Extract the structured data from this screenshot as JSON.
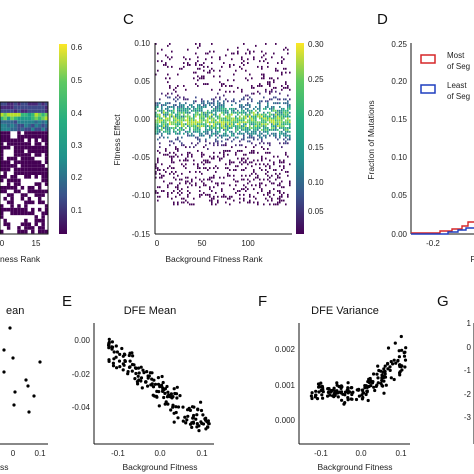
{
  "panels": {
    "C": "C",
    "D": "D",
    "E": "E",
    "F": "F",
    "G": "G"
  },
  "colors": {
    "viridis": [
      "#440154",
      "#482878",
      "#3e4989",
      "#31688e",
      "#26828e",
      "#1f9e89",
      "#35b779",
      "#6ece58",
      "#b5de2b",
      "#fde725"
    ],
    "mostFit": "#d62728",
    "leastFit": "#1f3fbf",
    "points": "#000000"
  },
  "chart_data": [
    {
      "id": "left-heatmap",
      "type": "heatmap",
      "xticks": [
        "0",
        "15"
      ],
      "xlabel": "ness Rank",
      "colorbar": {
        "ticks": [
          "0.1",
          "0.2",
          "0.3",
          "0.4",
          "0.5",
          "0.6"
        ],
        "range": [
          0.05,
          0.62
        ]
      }
    },
    {
      "id": "C",
      "type": "heatmap",
      "xlabel": "Background Fitness Rank",
      "ylabel": "Fitness Effect",
      "xlim": [
        0,
        145
      ],
      "ylim": [
        -0.15,
        0.1
      ],
      "xticks": [
        "0",
        "50",
        "100"
      ],
      "yticks": [
        "-0.15",
        "-0.10",
        "-0.05",
        "0.00",
        "0.05",
        "0.10"
      ],
      "colorbar": {
        "ticks": [
          "0.05",
          "0.10",
          "0.15",
          "0.20",
          "0.25",
          "0.30"
        ],
        "range": [
          0.03,
          0.3
        ]
      }
    },
    {
      "id": "D",
      "type": "line",
      "ylabel": "Fraction of Mutations",
      "xlabel": "F",
      "ylim": [
        0,
        0.25
      ],
      "yticks": [
        "0.00",
        "0.05",
        "0.10",
        "0.15",
        "0.20",
        "0.25"
      ],
      "xticks": [
        "-0.2",
        "0"
      ],
      "legend": [
        "Most\nof Seg",
        "Least\nof Seg"
      ],
      "legend_position": "top-right"
    },
    {
      "id": "left-scatter",
      "type": "scatter",
      "title": "ean",
      "xticks": [
        "0",
        "0.1"
      ],
      "xlabel": "ss"
    },
    {
      "id": "E",
      "type": "scatter",
      "title": "DFE Mean",
      "xlabel": "Background Fitness",
      "xlim": [
        -0.16,
        0.12
      ],
      "ylim": [
        -0.045,
        0.005
      ],
      "xticks": [
        "-0.1",
        "0.0",
        "0.1"
      ],
      "yticks": [
        "0.00",
        "-0.02",
        "-0.04"
      ]
    },
    {
      "id": "F",
      "type": "scatter",
      "title": "DFE Variance",
      "xlabel": "Background Fitness",
      "xlim": [
        -0.16,
        0.12
      ],
      "ylim": [
        0,
        0.0027
      ],
      "xticks": [
        "-0.1",
        "0.0",
        "0.1"
      ],
      "yticks": [
        "0.002",
        "0.001",
        "0.000"
      ]
    },
    {
      "id": "G",
      "type": "line",
      "yticks": [
        "1",
        "0",
        "-1",
        "-2",
        "-3"
      ]
    }
  ]
}
